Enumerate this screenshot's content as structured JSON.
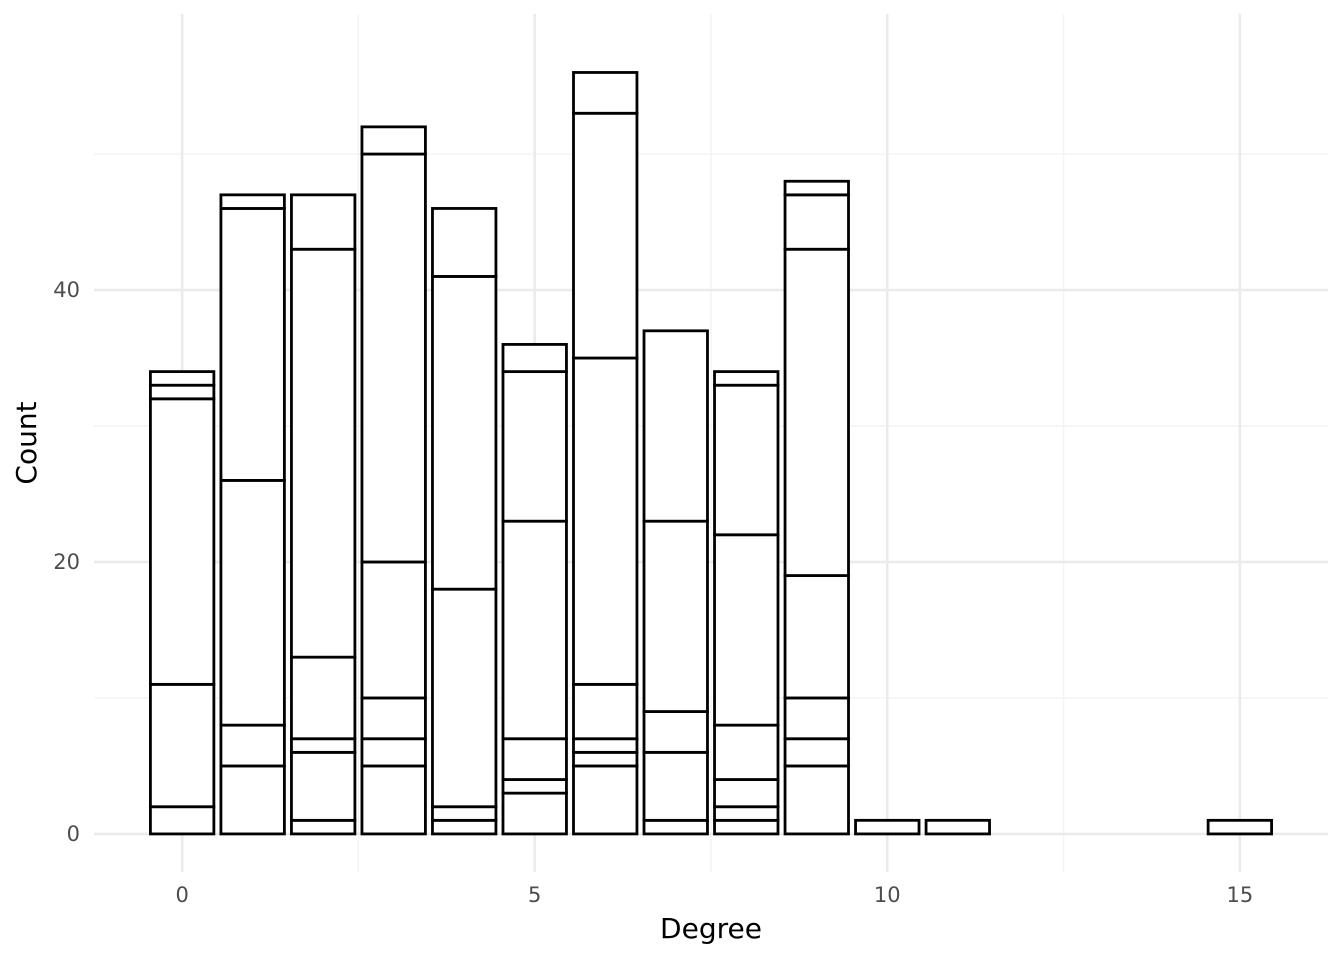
{
  "chart_data": {
    "type": "bar",
    "stacked": true,
    "title": "",
    "xlabel": "Degree",
    "ylabel": "Count",
    "xlim": [
      -1.25,
      16.25
    ],
    "ylim": [
      -2.8,
      60.3
    ],
    "x_major_ticks": [
      0,
      5,
      10,
      15
    ],
    "x_minor_ticks": [
      2.5,
      7.5,
      12.5
    ],
    "y_major_ticks": [
      0,
      20,
      40
    ],
    "y_minor_ticks": [
      10,
      30,
      50
    ],
    "grid": true,
    "legend": "none",
    "bar_width": 0.9,
    "fill_color": "#ffffff",
    "outline_color": "#000000",
    "bars": [
      {
        "x": 0,
        "segments": [
          2,
          9,
          21,
          1,
          0,
          0,
          1
        ]
      },
      {
        "x": 1,
        "segments": [
          5,
          3,
          18,
          20,
          0,
          0,
          1
        ]
      },
      {
        "x": 2,
        "segments": [
          1,
          5,
          1,
          6,
          30,
          0,
          4
        ]
      },
      {
        "x": 3,
        "segments": [
          5,
          2,
          3,
          10,
          30,
          0,
          2
        ]
      },
      {
        "x": 4,
        "segments": [
          1,
          1,
          16,
          23,
          0,
          0,
          5
        ]
      },
      {
        "x": 5,
        "segments": [
          3,
          1,
          3,
          16,
          11,
          0,
          2
        ]
      },
      {
        "x": 6,
        "segments": [
          5,
          1,
          1,
          4,
          24,
          18,
          3
        ]
      },
      {
        "x": 7,
        "segments": [
          1,
          5,
          3,
          14,
          14,
          0,
          0
        ]
      },
      {
        "x": 8,
        "segments": [
          1,
          1,
          2,
          4,
          14,
          11,
          1
        ]
      },
      {
        "x": 9,
        "segments": [
          5,
          2,
          3,
          9,
          24,
          4,
          1
        ]
      },
      {
        "x": 10,
        "segments": [
          1
        ]
      },
      {
        "x": 11,
        "segments": [
          1
        ]
      },
      {
        "x": 15,
        "segments": [
          1
        ]
      }
    ]
  }
}
